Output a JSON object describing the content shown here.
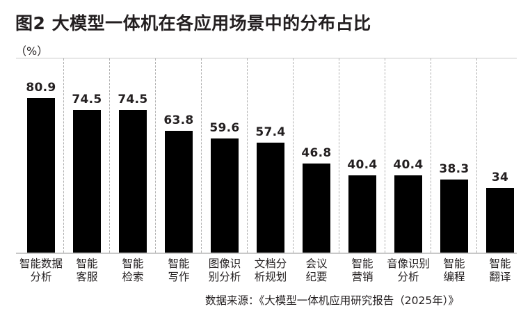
{
  "title": "图2 大模型一体机在各应用场景中的分布占比",
  "unit": "（%）",
  "source": "数据来源：《大模型一体机应用研究报告（2025年）》",
  "colors": {
    "bar": "#000000",
    "text": "#231f20",
    "gridline": "#c8c8c8"
  },
  "chart_data": {
    "type": "bar",
    "title": "图2 大模型一体机在各应用场景中的分布占比",
    "ylabel": "（%）",
    "xlabel": "",
    "categories": [
      "智能数据分析",
      "智能客服",
      "智能检索",
      "智能写作",
      "图像识别分析",
      "文档分析规划",
      "会议纪要",
      "智能营销",
      "音像识别分析",
      "智能编程",
      "智能翻译"
    ],
    "values": [
      80.9,
      74.5,
      74.5,
      63.8,
      59.6,
      57.4,
      46.8,
      40.4,
      40.4,
      38.3,
      34
    ],
    "value_labels": [
      "80.9",
      "74.5",
      "74.5",
      "63.8",
      "59.6",
      "57.4",
      "46.8",
      "40.4",
      "40.4",
      "38.3",
      "34"
    ],
    "ylim": [
      0,
      100
    ],
    "grid": false,
    "legend": null,
    "annotations": [
      "数据来源：《大模型一体机应用研究报告（2025年）》"
    ]
  },
  "bars": [
    {
      "line1": "智能数据",
      "line2": "分析",
      "label": "80.9"
    },
    {
      "line1": "智能",
      "line2": "客服",
      "label": "74.5"
    },
    {
      "line1": "智能",
      "line2": "检索",
      "label": "74.5"
    },
    {
      "line1": "智能",
      "line2": "写作",
      "label": "63.8"
    },
    {
      "line1": "图像识",
      "line2": "别分析",
      "label": "59.6"
    },
    {
      "line1": "文档分",
      "line2": "析规划",
      "label": "57.4"
    },
    {
      "line1": "会议",
      "line2": "纪要",
      "label": "46.8"
    },
    {
      "line1": "智能",
      "line2": "营销",
      "label": "40.4"
    },
    {
      "line1": "音像识别",
      "line2": "分析",
      "label": "40.4"
    },
    {
      "line1": "智能",
      "line2": "编程",
      "label": "38.3"
    },
    {
      "line1": "智能",
      "line2": "翻译",
      "label": "34"
    }
  ]
}
